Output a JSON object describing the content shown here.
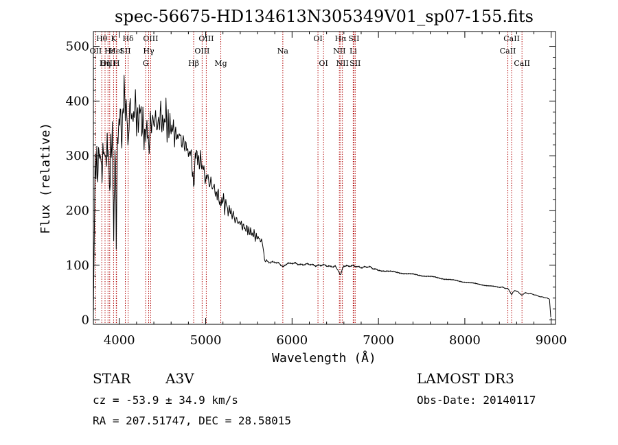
{
  "chart_data": {
    "type": "line",
    "title": "spec-56675-HD134613N305349V01_sp07-155.fits",
    "xlabel": "Wavelength (Å)",
    "ylabel": "Flux (relative)",
    "xlim": [
      3700,
      9050
    ],
    "ylim": [
      -8,
      527
    ],
    "x_ticks": [
      4000,
      5000,
      6000,
      7000,
      8000,
      9000
    ],
    "y_ticks": [
      0,
      100,
      200,
      300,
      400,
      500
    ],
    "x_tick_labels": [
      "4000",
      "5000",
      "6000",
      "7000",
      "8000",
      "9000"
    ],
    "y_tick_labels": [
      "0",
      "100",
      "200",
      "300",
      "400",
      "500"
    ],
    "series": [
      {
        "name": "flux",
        "points": [
          [
            3700,
            10
          ],
          [
            3710,
            150
          ],
          [
            3720,
            290
          ],
          [
            3730,
            260
          ],
          [
            3740,
            310
          ],
          [
            3750,
            240
          ],
          [
            3760,
            320
          ],
          [
            3770,
            290
          ],
          [
            3790,
            300
          ],
          [
            3800,
            250
          ],
          [
            3810,
            320
          ],
          [
            3830,
            300
          ],
          [
            3850,
            290
          ],
          [
            3860,
            330
          ],
          [
            3870,
            300
          ],
          [
            3880,
            290
          ],
          [
            3890,
            220
          ],
          [
            3900,
            320
          ],
          [
            3920,
            330
          ],
          [
            3935,
            150
          ],
          [
            3945,
            260
          ],
          [
            3955,
            310
          ],
          [
            3965,
            130
          ],
          [
            3975,
            300
          ],
          [
            3990,
            350
          ],
          [
            4010,
            380
          ],
          [
            4030,
            330
          ],
          [
            4050,
            400
          ],
          [
            4060,
            440
          ],
          [
            4070,
            360
          ],
          [
            4080,
            420
          ],
          [
            4100,
            310
          ],
          [
            4120,
            390
          ],
          [
            4140,
            380
          ],
          [
            4160,
            360
          ],
          [
            4180,
            400
          ],
          [
            4200,
            370
          ],
          [
            4220,
            360
          ],
          [
            4240,
            390
          ],
          [
            4260,
            360
          ],
          [
            4280,
            350
          ],
          [
            4300,
            330
          ],
          [
            4320,
            360
          ],
          [
            4340,
            310
          ],
          [
            4360,
            355
          ],
          [
            4380,
            365
          ],
          [
            4400,
            360
          ],
          [
            4420,
            370
          ],
          [
            4440,
            350
          ],
          [
            4460,
            365
          ],
          [
            4480,
            375
          ],
          [
            4500,
            355
          ],
          [
            4520,
            360
          ],
          [
            4540,
            380
          ],
          [
            4560,
            350
          ],
          [
            4580,
            360
          ],
          [
            4600,
            345
          ],
          [
            4620,
            355
          ],
          [
            4640,
            335
          ],
          [
            4660,
            340
          ],
          [
            4680,
            330
          ],
          [
            4700,
            345
          ],
          [
            4720,
            320
          ],
          [
            4740,
            330
          ],
          [
            4760,
            315
          ],
          [
            4780,
            320
          ],
          [
            4800,
            300
          ],
          [
            4820,
            310
          ],
          [
            4840,
            290
          ],
          [
            4860,
            240
          ],
          [
            4880,
            300
          ],
          [
            4900,
            305
          ],
          [
            4920,
            285
          ],
          [
            4940,
            295
          ],
          [
            4960,
            280
          ],
          [
            4980,
            275
          ],
          [
            5000,
            250
          ],
          [
            5020,
            270
          ],
          [
            5040,
            245
          ],
          [
            5060,
            255
          ],
          [
            5080,
            240
          ],
          [
            5100,
            245
          ],
          [
            5120,
            225
          ],
          [
            5140,
            235
          ],
          [
            5160,
            215
          ],
          [
            5180,
            210
          ],
          [
            5200,
            225
          ],
          [
            5220,
            205
          ],
          [
            5240,
            215
          ],
          [
            5260,
            195
          ],
          [
            5280,
            205
          ],
          [
            5300,
            190
          ],
          [
            5320,
            195
          ],
          [
            5340,
            180
          ],
          [
            5360,
            185
          ],
          [
            5380,
            175
          ],
          [
            5400,
            180
          ],
          [
            5420,
            170
          ],
          [
            5440,
            172
          ],
          [
            5460,
            165
          ],
          [
            5480,
            168
          ],
          [
            5500,
            160
          ],
          [
            5520,
            163
          ],
          [
            5540,
            155
          ],
          [
            5560,
            158
          ],
          [
            5580,
            150
          ],
          [
            5600,
            152
          ],
          [
            5620,
            148
          ],
          [
            5640,
            145
          ],
          [
            5660,
            140
          ],
          [
            5680,
            110
          ],
          [
            5700,
            108
          ],
          [
            5750,
            105
          ],
          [
            5800,
            106
          ],
          [
            5850,
            103
          ],
          [
            5900,
            97
          ],
          [
            5950,
            104
          ],
          [
            6000,
            103
          ],
          [
            6100,
            102
          ],
          [
            6200,
            101
          ],
          [
            6300,
            100
          ],
          [
            6400,
            99
          ],
          [
            6500,
            98
          ],
          [
            6560,
            82
          ],
          [
            6600,
            100
          ],
          [
            6700,
            98
          ],
          [
            6800,
            97
          ],
          [
            6900,
            96
          ],
          [
            7000,
            92
          ],
          [
            7200,
            88
          ],
          [
            7400,
            84
          ],
          [
            7600,
            80
          ],
          [
            7800,
            75
          ],
          [
            8000,
            70
          ],
          [
            8200,
            65
          ],
          [
            8400,
            60
          ],
          [
            8500,
            57
          ],
          [
            8542,
            46
          ],
          [
            8580,
            55
          ],
          [
            8662,
            45
          ],
          [
            8700,
            50
          ],
          [
            8800,
            46
          ],
          [
            8900,
            42
          ],
          [
            8950,
            40
          ],
          [
            8980,
            38
          ],
          [
            8995,
            5
          ]
        ]
      }
    ],
    "line_markers": [
      {
        "label": "Hθ",
        "wavelength": 3797,
        "row": 0
      },
      {
        "label": "OII",
        "wavelength": 3727,
        "row": 1
      },
      {
        "label": "OIII",
        "wavelength": 3869,
        "row": 2
      },
      {
        "label": "Hε",
        "wavelength": 3889,
        "row": 1
      },
      {
        "label": "Hη",
        "wavelength": 3835,
        "row": 2
      },
      {
        "label": "K",
        "wavelength": 3934,
        "row": 0
      },
      {
        "label": "HeI",
        "wavelength": 3965,
        "row": 1
      },
      {
        "label": "H",
        "wavelength": 3968,
        "row": 2
      },
      {
        "label": "SII",
        "wavelength": 4070,
        "row": 1
      },
      {
        "label": "Hδ",
        "wavelength": 4102,
        "row": 0
      },
      {
        "label": "OIII",
        "wavelength": 4363,
        "row": 0
      },
      {
        "label": "Hγ",
        "wavelength": 4340,
        "row": 1
      },
      {
        "label": "G",
        "wavelength": 4305,
        "row": 2
      },
      {
        "label": "OIII",
        "wavelength": 5007,
        "row": 0
      },
      {
        "label": "OIII",
        "wavelength": 4959,
        "row": 1
      },
      {
        "label": "Hβ",
        "wavelength": 4861,
        "row": 2
      },
      {
        "label": "Mg",
        "wavelength": 5175,
        "row": 2
      },
      {
        "label": "Na",
        "wavelength": 5893,
        "row": 1
      },
      {
        "label": "OI",
        "wavelength": 6300,
        "row": 0
      },
      {
        "label": "OI",
        "wavelength": 6364,
        "row": 2
      },
      {
        "label": "Hα",
        "wavelength": 6563,
        "row": 0
      },
      {
        "label": "SII",
        "wavelength": 6716,
        "row": 0
      },
      {
        "label": "NII",
        "wavelength": 6548,
        "row": 1
      },
      {
        "label": "Li",
        "wavelength": 6708,
        "row": 1
      },
      {
        "label": "NII",
        "wavelength": 6583,
        "row": 2
      },
      {
        "label": "SII",
        "wavelength": 6731,
        "row": 2
      },
      {
        "label": "CaII",
        "wavelength": 8542,
        "row": 0
      },
      {
        "label": "CaII",
        "wavelength": 8498,
        "row": 1
      },
      {
        "label": "CaII",
        "wavelength": 8662,
        "row": 2
      }
    ],
    "marker_color": "#b00000",
    "line_color": "#000000"
  },
  "info": {
    "object_class": "STAR",
    "subclass": "A3V",
    "survey": "LAMOST DR3",
    "cz": "cz = -53.9 ± 34.9 km/s",
    "obs_date": "Obs-Date: 20140117",
    "coords": "RA = 207.51747, DEC =  28.58015"
  }
}
